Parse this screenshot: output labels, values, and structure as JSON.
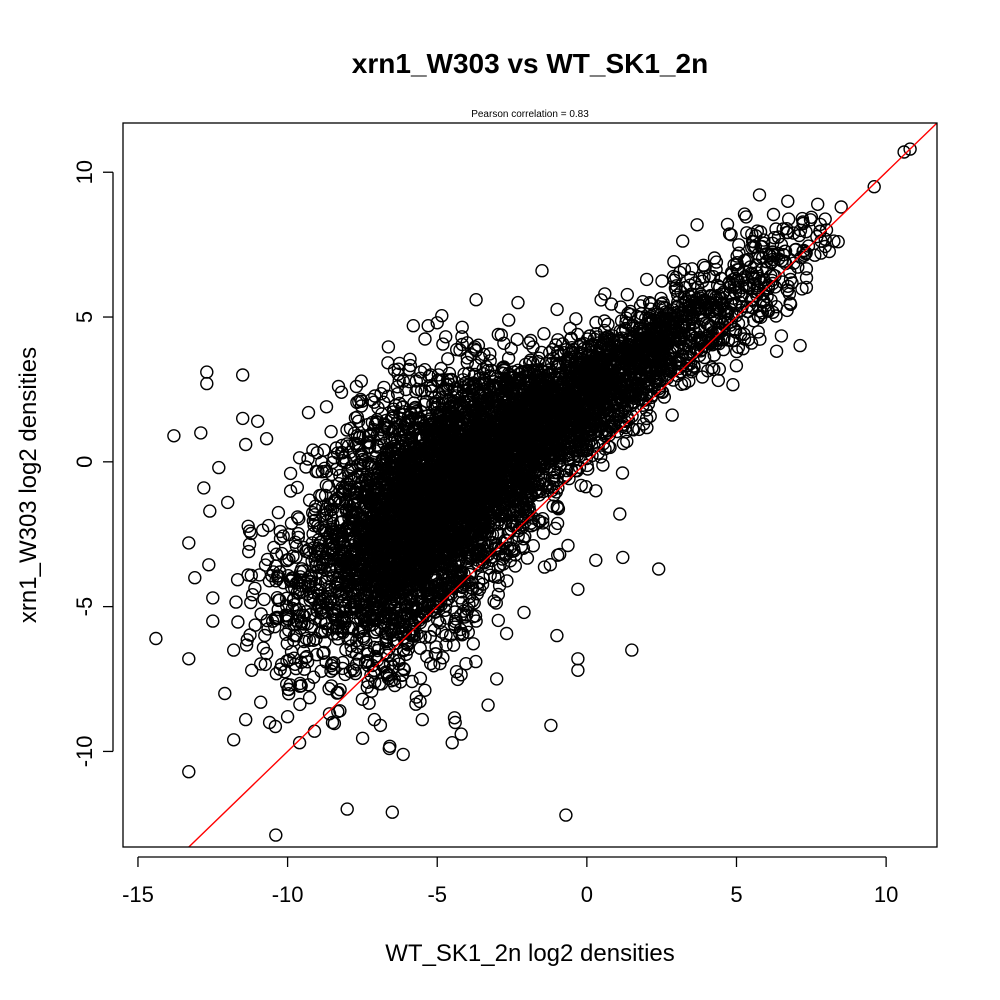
{
  "chart_data": {
    "type": "scatter",
    "title": "xrn1_W303 vs WT_SK1_2n",
    "subtitle": "Pearson correlation =  0.83",
    "xlabel": "WT_SK1_2n log2 densities",
    "ylabel": "xrn1_W303 log2 densities",
    "xlim": [
      -15.5,
      11.7
    ],
    "ylim": [
      -13.3,
      11.7
    ],
    "x_ticks": [
      -15,
      -10,
      -5,
      0,
      5,
      10
    ],
    "y_ticks": [
      -10,
      -5,
      0,
      5,
      10
    ],
    "x_tick_labels": [
      "-15",
      "-10",
      "-5",
      "0",
      "5",
      "10"
    ],
    "y_tick_labels": [
      "-10",
      "-5",
      "0",
      "5",
      "10"
    ],
    "reference_line": {
      "slope": 1,
      "intercept": 0,
      "color": "#ff0000"
    },
    "marker": {
      "shape": "open-circle",
      "color": "#000000"
    },
    "dense_cloud": {
      "centers": [
        [
          -10.2,
          -4.8
        ],
        [
          -9.0,
          -4.5
        ],
        [
          -7.5,
          -3.5
        ],
        [
          -6.5,
          -2.5
        ],
        [
          -5.5,
          -1.8
        ],
        [
          -4.5,
          -1.0
        ],
        [
          -3.5,
          -0.3
        ],
        [
          -2.5,
          0.6
        ],
        [
          -1.5,
          1.3
        ],
        [
          -0.5,
          2.0
        ],
        [
          0.5,
          2.7
        ],
        [
          1.5,
          3.3
        ],
        [
          2.5,
          4.0
        ],
        [
          3.5,
          4.6
        ],
        [
          4.5,
          5.5
        ],
        [
          5.5,
          6.3
        ],
        [
          6.5,
          7.0
        ],
        [
          7.5,
          7.6
        ]
      ],
      "spread_x": [
        0.8,
        0.9,
        1.0,
        1.0,
        1.0,
        0.9,
        0.8,
        0.8,
        0.7,
        0.7,
        0.7,
        0.7,
        0.7,
        0.7,
        0.7,
        0.6,
        0.6,
        0.5
      ],
      "spread_y": [
        1.8,
        2.0,
        2.2,
        2.2,
        2.1,
        1.9,
        1.6,
        1.4,
        1.2,
        1.0,
        0.9,
        0.9,
        0.8,
        0.8,
        0.8,
        0.8,
        0.7,
        0.6
      ],
      "counts": [
        80,
        160,
        520,
        800,
        900,
        820,
        700,
        560,
        460,
        380,
        320,
        250,
        200,
        160,
        120,
        90,
        60,
        25
      ]
    },
    "outlier_points": [
      [
        -14.4,
        -6.1
      ],
      [
        -13.8,
        0.9
      ],
      [
        -13.3,
        -2.8
      ],
      [
        -13.3,
        -6.8
      ],
      [
        -13.3,
        -10.7
      ],
      [
        -13.1,
        -4.0
      ],
      [
        -12.9,
        1.0
      ],
      [
        -12.8,
        -0.9
      ],
      [
        -12.7,
        3.1
      ],
      [
        -12.7,
        2.7
      ],
      [
        -12.6,
        -1.7
      ],
      [
        -12.5,
        -4.7
      ],
      [
        -12.5,
        -5.5
      ],
      [
        -12.3,
        -0.2
      ],
      [
        -12.1,
        -8.0
      ],
      [
        -12.0,
        -1.4
      ],
      [
        -11.8,
        -6.5
      ],
      [
        -11.8,
        -9.6
      ],
      [
        -11.5,
        3.0
      ],
      [
        -11.5,
        1.5
      ],
      [
        -11.4,
        0.6
      ],
      [
        -11.4,
        -8.9
      ],
      [
        -11.3,
        -3.1
      ],
      [
        -11.2,
        -7.2
      ],
      [
        -11.0,
        1.4
      ],
      [
        -10.9,
        -8.3
      ],
      [
        -10.7,
        0.8
      ],
      [
        -10.6,
        -9.0
      ],
      [
        -10.4,
        -3.6
      ],
      [
        -10.2,
        -7.0
      ],
      [
        -10.0,
        -8.8
      ],
      [
        -9.9,
        -0.4
      ],
      [
        -9.6,
        -9.7
      ],
      [
        -9.5,
        -5.3
      ],
      [
        -9.3,
        1.7
      ],
      [
        -9.3,
        -7.7
      ],
      [
        -9.1,
        -9.3
      ],
      [
        -8.7,
        1.9
      ],
      [
        -8.6,
        -8.7
      ],
      [
        -8.5,
        -9.0
      ],
      [
        -8.3,
        2.6
      ],
      [
        -8.2,
        2.4
      ],
      [
        -7.7,
        2.6
      ],
      [
        -7.5,
        -8.2
      ],
      [
        -7.1,
        -8.9
      ],
      [
        -6.9,
        -9.1
      ],
      [
        -6.6,
        -9.9
      ],
      [
        -6.5,
        -12.1
      ],
      [
        -6.3,
        3.2
      ],
      [
        -5.8,
        4.7
      ],
      [
        -5.5,
        -8.9
      ],
      [
        -5.0,
        4.8
      ],
      [
        -4.5,
        -9.7
      ],
      [
        -4.4,
        -9.0
      ],
      [
        -4.2,
        -9.4
      ],
      [
        -3.7,
        5.6
      ],
      [
        -3.3,
        -8.4
      ],
      [
        -2.3,
        5.5
      ],
      [
        -2.1,
        -5.2
      ],
      [
        -1.5,
        6.6
      ],
      [
        -1.2,
        -9.1
      ],
      [
        -1.0,
        -6.0
      ],
      [
        -0.7,
        -12.2
      ],
      [
        -0.3,
        -7.2
      ],
      [
        -0.3,
        -6.8
      ],
      [
        -0.3,
        -4.4
      ],
      [
        0.3,
        -1.0
      ],
      [
        0.3,
        -3.4
      ],
      [
        0.6,
        5.8
      ],
      [
        1.1,
        -1.8
      ],
      [
        1.2,
        -3.3
      ],
      [
        1.5,
        -6.5
      ],
      [
        2.0,
        6.3
      ],
      [
        2.4,
        -3.7
      ],
      [
        4.7,
        8.2
      ],
      [
        4.4,
        4.2
      ],
      [
        5.5,
        4.1
      ],
      [
        6.0,
        5.4
      ],
      [
        6.5,
        7.5
      ],
      [
        7.2,
        8.4
      ],
      [
        7.8,
        8.2
      ],
      [
        8.4,
        7.6
      ],
      [
        8.5,
        8.8
      ],
      [
        9.6,
        9.5
      ],
      [
        10.6,
        10.7
      ],
      [
        10.8,
        10.8
      ]
    ]
  }
}
